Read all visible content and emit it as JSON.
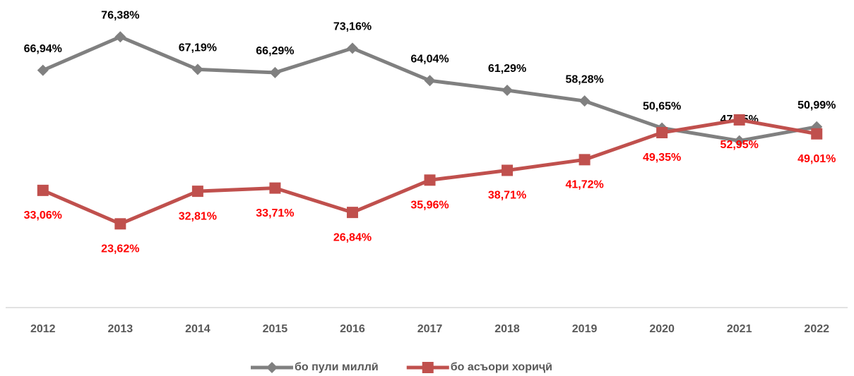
{
  "chart_data": {
    "type": "line",
    "categories": [
      "2012",
      "2013",
      "2014",
      "2015",
      "2016",
      "2017",
      "2018",
      "2019",
      "2020",
      "2021",
      "2022"
    ],
    "series": [
      {
        "name": "бо пули миллӣ",
        "color": "#808080",
        "label_color": "#000000",
        "marker": "diamond",
        "values": [
          66.94,
          76.38,
          67.19,
          66.29,
          73.16,
          64.04,
          61.29,
          58.28,
          50.65,
          47.05,
          50.99
        ],
        "value_labels": [
          "66,94%",
          "76,38%",
          "67,19%",
          "66,29%",
          "73,16%",
          "64,04%",
          "61,29%",
          "58,28%",
          "50,65%",
          "47,05%",
          "50,99%"
        ]
      },
      {
        "name": "бо асъори хориҷӣ",
        "color": "#c0504d",
        "label_color": "#ff0000",
        "marker": "square",
        "values": [
          33.06,
          23.62,
          32.81,
          33.71,
          26.84,
          35.96,
          38.71,
          41.72,
          49.35,
          52.95,
          49.01
        ],
        "value_labels": [
          "33,06%",
          "23,62%",
          "32,81%",
          "33,71%",
          "26,84%",
          "35,96%",
          "38,71%",
          "41,72%",
          "49,35%",
          "52,95%",
          "49,01%"
        ]
      }
    ],
    "ylim": [
      0,
      80
    ],
    "legend": "bottom"
  }
}
